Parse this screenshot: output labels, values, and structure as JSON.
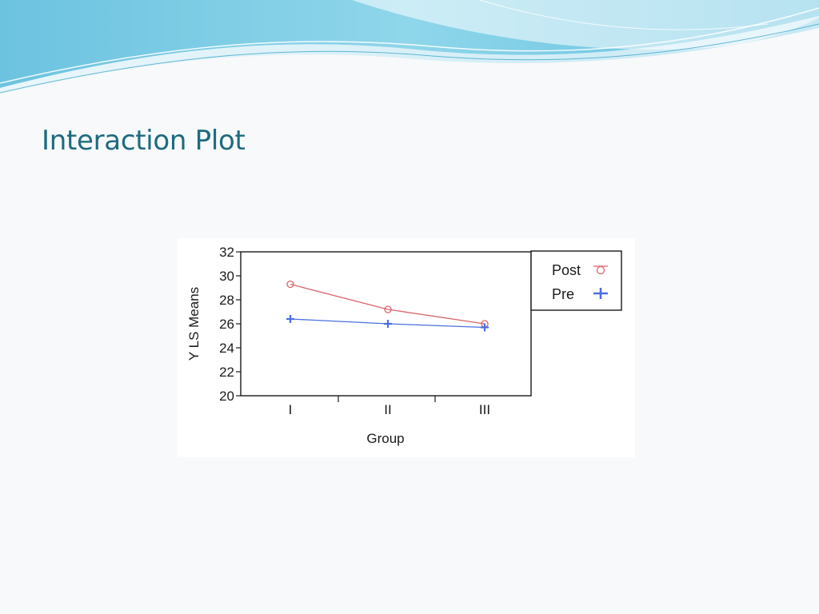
{
  "slide": {
    "title": "Interaction Plot"
  },
  "colors": {
    "title": "#1d6b80",
    "post": "#d9646b",
    "pre": "#4a6fe0",
    "axis": "#1a1a1a"
  },
  "chart_data": {
    "type": "line",
    "title": "",
    "xlabel": "Group",
    "ylabel": "Y LS Means",
    "categories": [
      "I",
      "II",
      "III"
    ],
    "ylim": [
      20,
      32
    ],
    "yticks": [
      20,
      22,
      24,
      26,
      28,
      30,
      32
    ],
    "grid": false,
    "legend": "top-right",
    "series": [
      {
        "name": "Post",
        "marker": "circle",
        "color": "#d9646b",
        "values": [
          29.3,
          27.2,
          26.0
        ]
      },
      {
        "name": "Pre",
        "marker": "plus",
        "color": "#4a6fe0",
        "values": [
          26.4,
          26.0,
          25.7
        ]
      }
    ]
  }
}
